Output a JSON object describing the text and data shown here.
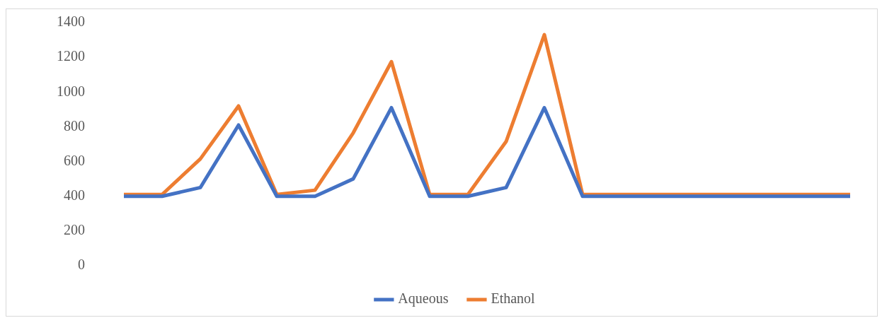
{
  "chart_data": {
    "type": "line",
    "categories": [
      null,
      null,
      null,
      null,
      null,
      null,
      null,
      null,
      null,
      null,
      null,
      null,
      null,
      null,
      null,
      null,
      null,
      null,
      null,
      null
    ],
    "series": [
      {
        "name": "Aqueous",
        "color": "#4472c4",
        "values": [
          400,
          400,
          450,
          810,
          400,
          400,
          500,
          910,
          400,
          400,
          450,
          910,
          400,
          400,
          400,
          400,
          400,
          400,
          400,
          400
        ]
      },
      {
        "name": "Ethanol",
        "color": "#ed7d31",
        "values": [
          410,
          410,
          615,
          920,
          410,
          435,
          765,
          1175,
          410,
          410,
          715,
          1330,
          410,
          410,
          410,
          410,
          410,
          410,
          410,
          410
        ]
      }
    ],
    "ylim": [
      0,
      1400
    ],
    "yticks": [
      0,
      200,
      400,
      600,
      800,
      1000,
      1200,
      1400
    ],
    "grid": false,
    "legend": "bottom",
    "tick_labels": "y"
  }
}
